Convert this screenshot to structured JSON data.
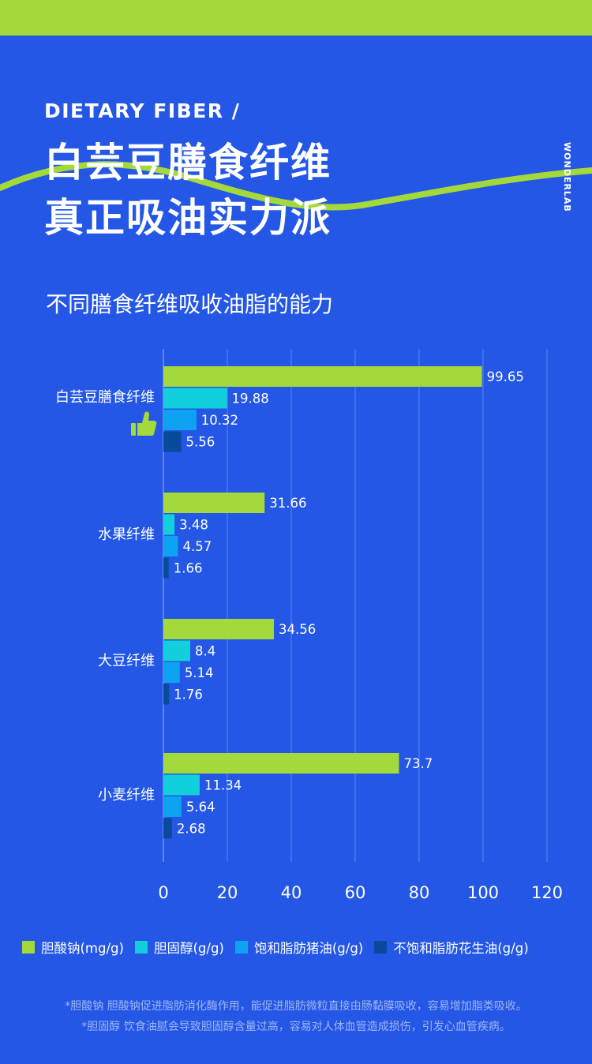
{
  "header": {
    "eyebrow": "DIETARY FIBER /",
    "headline_line1": "白芸豆膳食纤维",
    "headline_line2": "真正吸油实力派",
    "brand": "WONDERLAB",
    "accent_color": "#a3d93a",
    "background_color": "#2457e6"
  },
  "chart_title": "不同膳食纤维吸收油脂的能力",
  "chart_data": {
    "type": "bar",
    "orientation": "horizontal",
    "categories": [
      "白芸豆膳食纤维",
      "水果纤维",
      "大豆纤维",
      "小麦纤维"
    ],
    "highlight_category_icon": "thumbs-up-icon",
    "series": [
      {
        "name": "胆酸钠(mg/g)",
        "color": "#a3d93a",
        "values": [
          99.65,
          31.66,
          34.56,
          73.7
        ],
        "labels": [
          "99.65",
          "31.66",
          "34.56",
          "73.7"
        ]
      },
      {
        "name": "胆固醇(g/g)",
        "color": "#12cfdc",
        "values": [
          19.88,
          3.48,
          8.4,
          11.34
        ],
        "labels": [
          "19.88",
          "3.48",
          "8.4",
          "11.34"
        ]
      },
      {
        "name": "饱和脂肪猪油(g/g)",
        "color": "#0ea3f2",
        "values": [
          10.32,
          4.57,
          5.14,
          5.64
        ],
        "labels": [
          "10.32",
          "4.57",
          "5.14",
          "5.64"
        ]
      },
      {
        "name": "不饱和脂肪花生油(g/g)",
        "color": "#0a4a9c",
        "values": [
          5.56,
          1.66,
          1.76,
          2.68
        ],
        "labels": [
          "5.56",
          "1.66",
          "1.76",
          "2.68"
        ]
      }
    ],
    "xlim": [
      0,
      120
    ],
    "xticks": [
      0,
      20,
      40,
      60,
      80,
      100,
      120
    ],
    "xtick_labels": [
      "0",
      "20",
      "40",
      "60",
      "80",
      "100",
      "120"
    ],
    "grid": true,
    "legend_position": "bottom"
  },
  "notes": [
    "*胆酸钠 胆酸钠促进脂肪消化酶作用，能促进脂肪微粒直接由肠黏膜吸收，容易增加脂类吸收。",
    "*胆固醇 饮食油腻会导致胆固醇含量过高，容易对人体血管造成损伤，引发心血管疾病。"
  ]
}
